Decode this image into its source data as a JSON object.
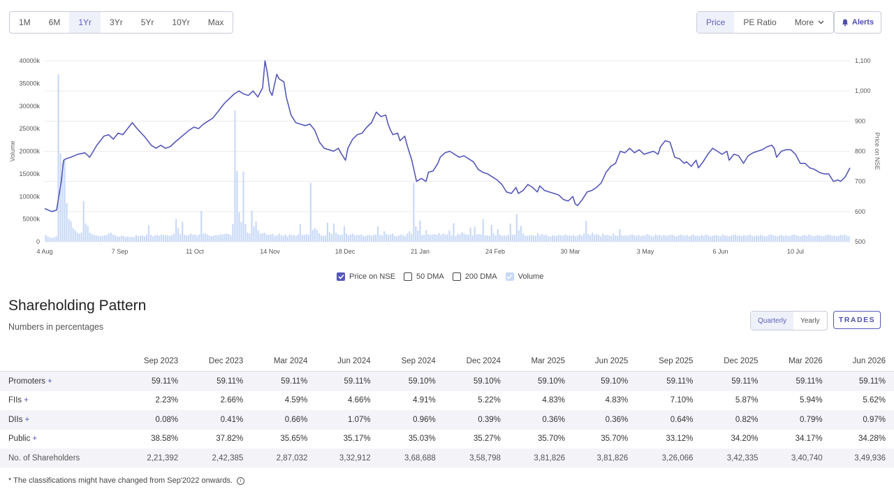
{
  "toolbar": {
    "ranges": [
      "1M",
      "6M",
      "1Yr",
      "3Yr",
      "5Yr",
      "10Yr",
      "Max"
    ],
    "active_range": "1Yr",
    "metric_price": "Price",
    "metric_pe": "PE Ratio",
    "metric_more": "More",
    "alerts_label": "Alerts"
  },
  "legend": {
    "price": "Price on NSE",
    "dma50": "50 DMA",
    "dma200": "200 DMA",
    "volume": "Volume"
  },
  "colors": {
    "accent": "#5457b8",
    "volume_bar": "#c8d9f7",
    "grid": "#eaeaea"
  },
  "chart_data": {
    "type": "line",
    "ylabel_left": "Volume",
    "ylabel_right": "Price on NSE",
    "x_ticks": [
      "4 Aug",
      "7 Sep",
      "11 Oct",
      "14 Nov",
      "18 Dec",
      "21 Jan",
      "24 Feb",
      "30 Mar",
      "3 May",
      "6 Jun",
      "10 Jul"
    ],
    "y_left_ticks": [
      "0",
      "5000k",
      "10000k",
      "15000k",
      "20000k",
      "25000k",
      "30000k",
      "35000k",
      "40000k"
    ],
    "y_right_ticks": [
      "500",
      "600",
      "700",
      "800",
      "900",
      "1,000",
      "1,100"
    ],
    "volume_range": [
      0,
      40000
    ],
    "price_range": [
      500,
      1100
    ],
    "price_series": {
      "name": "Price on NSE",
      "points": [
        [
          0,
          610
        ],
        [
          3,
          600
        ],
        [
          5,
          605
        ],
        [
          7,
          700
        ],
        [
          8,
          770
        ],
        [
          9,
          775
        ],
        [
          11,
          780
        ],
        [
          14,
          790
        ],
        [
          17,
          795
        ],
        [
          19,
          780
        ],
        [
          22,
          820
        ],
        [
          25,
          850
        ],
        [
          27,
          855
        ],
        [
          29,
          840
        ],
        [
          31,
          860
        ],
        [
          33,
          855
        ],
        [
          35,
          875
        ],
        [
          37,
          895
        ],
        [
          39,
          875
        ],
        [
          42,
          850
        ],
        [
          45,
          820
        ],
        [
          47,
          810
        ],
        [
          49,
          820
        ],
        [
          51,
          810
        ],
        [
          53,
          815
        ],
        [
          55,
          830
        ],
        [
          58,
          850
        ],
        [
          61,
          870
        ],
        [
          63,
          880
        ],
        [
          65,
          875
        ],
        [
          67,
          890
        ],
        [
          69,
          900
        ],
        [
          71,
          910
        ],
        [
          73,
          930
        ],
        [
          75,
          950
        ],
        [
          76,
          960
        ],
        [
          78,
          975
        ],
        [
          80,
          990
        ],
        [
          82,
          1000
        ],
        [
          84,
          990
        ],
        [
          86,
          985
        ],
        [
          88,
          1000
        ],
        [
          90,
          980
        ],
        [
          92,
          1010
        ],
        [
          93,
          1100
        ],
        [
          94,
          1060
        ],
        [
          95,
          1000
        ],
        [
          96,
          985
        ],
        [
          97,
          1020
        ],
        [
          98,
          1055
        ],
        [
          99,
          1040
        ],
        [
          101,
          1030
        ],
        [
          102,
          980
        ],
        [
          104,
          920
        ],
        [
          106,
          895
        ],
        [
          108,
          890
        ],
        [
          110,
          885
        ],
        [
          112,
          890
        ],
        [
          114,
          870
        ],
        [
          116,
          830
        ],
        [
          118,
          810
        ],
        [
          120,
          805
        ],
        [
          122,
          800
        ],
        [
          124,
          810
        ],
        [
          125,
          795
        ],
        [
          127,
          770
        ],
        [
          128,
          810
        ],
        [
          130,
          840
        ],
        [
          132,
          855
        ],
        [
          134,
          860
        ],
        [
          136,
          880
        ],
        [
          138,
          895
        ],
        [
          140,
          930
        ],
        [
          142,
          915
        ],
        [
          144,
          920
        ],
        [
          145,
          890
        ],
        [
          146,
          870
        ],
        [
          147,
          855
        ],
        [
          149,
          860
        ],
        [
          150,
          835
        ],
        [
          152,
          850
        ],
        [
          153,
          820
        ],
        [
          155,
          770
        ],
        [
          157,
          700
        ],
        [
          159,
          710
        ],
        [
          161,
          700
        ],
        [
          162,
          730
        ],
        [
          164,
          735
        ],
        [
          166,
          760
        ],
        [
          167,
          780
        ],
        [
          169,
          795
        ],
        [
          171,
          800
        ],
        [
          173,
          790
        ],
        [
          175,
          780
        ],
        [
          177,
          785
        ],
        [
          179,
          775
        ],
        [
          181,
          765
        ],
        [
          183,
          740
        ],
        [
          185,
          730
        ],
        [
          187,
          725
        ],
        [
          189,
          715
        ],
        [
          191,
          705
        ],
        [
          193,
          690
        ],
        [
          195,
          665
        ],
        [
          197,
          660
        ],
        [
          199,
          680
        ],
        [
          200,
          660
        ],
        [
          202,
          670
        ],
        [
          204,
          690
        ],
        [
          206,
          680
        ],
        [
          208,
          665
        ],
        [
          209,
          685
        ],
        [
          211,
          670
        ],
        [
          213,
          665
        ],
        [
          215,
          660
        ],
        [
          217,
          655
        ],
        [
          219,
          640
        ],
        [
          221,
          635
        ],
        [
          223,
          650
        ],
        [
          224,
          625
        ],
        [
          225,
          620
        ],
        [
          227,
          640
        ],
        [
          229,
          665
        ],
        [
          231,
          670
        ],
        [
          233,
          680
        ],
        [
          235,
          695
        ],
        [
          237,
          730
        ],
        [
          239,
          750
        ],
        [
          241,
          760
        ],
        [
          243,
          800
        ],
        [
          245,
          795
        ],
        [
          247,
          810
        ],
        [
          249,
          795
        ],
        [
          251,
          805
        ],
        [
          253,
          790
        ],
        [
          255,
          795
        ],
        [
          257,
          800
        ],
        [
          259,
          790
        ],
        [
          260,
          815
        ],
        [
          262,
          835
        ],
        [
          264,
          830
        ],
        [
          266,
          780
        ],
        [
          268,
          775
        ],
        [
          270,
          760
        ],
        [
          271,
          765
        ],
        [
          273,
          750
        ],
        [
          275,
          770
        ],
        [
          276,
          745
        ],
        [
          278,
          765
        ],
        [
          280,
          790
        ],
        [
          282,
          810
        ],
        [
          284,
          800
        ],
        [
          286,
          790
        ],
        [
          288,
          800
        ],
        [
          289,
          770
        ],
        [
          291,
          790
        ],
        [
          293,
          785
        ],
        [
          295,
          760
        ],
        [
          297,
          785
        ],
        [
          299,
          795
        ],
        [
          301,
          800
        ],
        [
          303,
          805
        ],
        [
          305,
          815
        ],
        [
          307,
          820
        ],
        [
          308,
          810
        ],
        [
          309,
          780
        ],
        [
          311,
          800
        ],
        [
          313,
          805
        ],
        [
          315,
          805
        ],
        [
          317,
          790
        ],
        [
          319,
          760
        ],
        [
          321,
          760
        ],
        [
          323,
          745
        ],
        [
          325,
          740
        ],
        [
          327,
          730
        ],
        [
          329,
          725
        ],
        [
          331,
          725
        ],
        [
          333,
          700
        ],
        [
          335,
          705
        ],
        [
          336,
          700
        ],
        [
          338,
          715
        ],
        [
          340,
          745
        ]
      ]
    },
    "volume_series": {
      "name": "Volume",
      "values": [
        1500,
        1200,
        900,
        800,
        1000,
        1200,
        37000,
        19500,
        17500,
        18000,
        8500,
        5000,
        4500,
        3000,
        2500,
        2000,
        1800,
        2000,
        9000,
        4000,
        3500,
        2000,
        1700,
        1500,
        1400,
        1300,
        1300,
        1300,
        1400,
        1500,
        1800,
        2000,
        1600,
        1400,
        1200,
        1100,
        1300,
        1300,
        1000,
        1200,
        1000,
        1100,
        1000,
        1500,
        1200,
        1300,
        1400,
        1200,
        1600,
        3600,
        1500,
        1200,
        1400,
        1500,
        1300,
        1600,
        1500,
        1500,
        1400,
        1300,
        1500,
        1800,
        5000,
        3000,
        1700,
        4400,
        1500,
        1400,
        1500,
        1800,
        1500,
        1600,
        1300,
        1600,
        6800,
        1800,
        1800,
        1600,
        1300,
        1200,
        1400,
        1500,
        1400,
        1600,
        1600,
        1700,
        1800,
        1700,
        1400,
        3900,
        29000,
        15600,
        6500,
        4300,
        15500,
        3900,
        2000,
        1800,
        6900,
        3400,
        4500,
        2500,
        1800,
        1800,
        2000,
        1600,
        1500,
        1600,
        1700,
        1300,
        1400,
        1800,
        1400,
        1300,
        1600,
        1200,
        1600,
        1400,
        1500,
        1300,
        1600,
        3900,
        1500,
        1500,
        1700,
        1500,
        13000,
        2600,
        3000,
        2600,
        1900,
        1400,
        1300,
        1400,
        4200,
        2100,
        1700,
        4000,
        2000,
        1700,
        1500,
        1600,
        3400,
        1800,
        1400,
        1600,
        1800,
        1400,
        1500,
        1500,
        1600,
        1300,
        1200,
        1400,
        1500,
        1300,
        1500,
        1600,
        3400,
        1500,
        1400,
        2300,
        1700,
        1500,
        1600,
        1800,
        1300,
        1200,
        1400,
        1600,
        1400,
        1200,
        1800,
        2300,
        1700,
        13000,
        3400,
        2500,
        4700,
        1500,
        1500,
        2600,
        1600,
        1500,
        1600,
        1600,
        1500,
        1900,
        1500,
        1800,
        1600,
        1600,
        2500,
        1400,
        4100,
        1300,
        1700,
        1600,
        2100,
        1800,
        1600,
        1600,
        3100,
        1400,
        3300,
        1600,
        1700,
        1600,
        5000,
        1400,
        1400,
        1300,
        3700,
        1900,
        1400,
        2800,
        1600,
        1300,
        1400,
        1300,
        1500,
        4000,
        1500,
        1600,
        6100,
        2500,
        3500,
        1800,
        1400,
        1300,
        1400,
        1500,
        1400,
        1300,
        1900,
        1400,
        1700,
        1400,
        1600,
        1200,
        1200,
        1400,
        1300,
        1300,
        1500,
        1400,
        1300,
        1600,
        1400,
        1400,
        1300,
        1500,
        1200,
        1400,
        1600,
        1300,
        1800,
        4600,
        1700,
        1400,
        2000,
        1500,
        1700,
        1500,
        1200,
        1800,
        1400,
        1500,
        1400,
        1300,
        1800,
        1400,
        1300,
        2800,
        1400,
        1300,
        1400,
        1300,
        1500,
        1600,
        1400,
        1300,
        1500,
        1200,
        1400,
        1300,
        1700,
        1500,
        1300,
        1200,
        1600,
        1400,
        1500,
        1300,
        1500,
        1300,
        1400,
        1500,
        1600,
        1300,
        1200,
        1400,
        1600,
        1400,
        1300,
        1500,
        1200,
        1400,
        1600,
        1300,
        1400,
        1200,
        1500,
        1300,
        1600,
        1400,
        1200,
        1300,
        1400,
        1500,
        1300,
        1200,
        1600,
        1400,
        1300,
        1200,
        1400,
        1500,
        1600,
        1300,
        1400,
        1200,
        1500,
        1300,
        1400,
        1600,
        1300,
        1200,
        1400,
        1300,
        1500,
        1400,
        1200,
        1300,
        1500,
        1600,
        1400,
        1300,
        1200,
        1400,
        1500,
        1300,
        1400,
        1200,
        1300,
        1500,
        1600,
        1400,
        1300,
        1200,
        1400,
        1500,
        1300,
        1600,
        1400,
        1200,
        1300,
        1500,
        1400,
        1300,
        1200,
        1400,
        1600,
        1500,
        1300,
        1400,
        1200,
        1300,
        1500,
        1400,
        1600,
        1300,
        1200
      ]
    }
  },
  "shareholding": {
    "title": "Shareholding Pattern",
    "subtitle": "Numbers in percentages",
    "freq_quarterly": "Quarterly",
    "freq_yearly": "Yearly",
    "trades_label": "TRADES",
    "periods": [
      "Sep 2023",
      "Dec 2023",
      "Mar 2024",
      "Jun 2024",
      "Sep 2024",
      "Dec 2024",
      "Mar 2025",
      "Jun 2025",
      "Sep 2025",
      "Dec 2025",
      "Mar 2026",
      "Jun 2026"
    ],
    "rows": [
      {
        "label": "Promoters",
        "expandable": true,
        "values": [
          "59.11%",
          "59.11%",
          "59.11%",
          "59.11%",
          "59.10%",
          "59.10%",
          "59.10%",
          "59.10%",
          "59.11%",
          "59.11%",
          "59.11%",
          "59.11%"
        ]
      },
      {
        "label": "FIIs",
        "expandable": true,
        "values": [
          "2.23%",
          "2.66%",
          "4.59%",
          "4.66%",
          "4.91%",
          "5.22%",
          "4.83%",
          "4.83%",
          "7.10%",
          "5.87%",
          "5.94%",
          "5.62%"
        ]
      },
      {
        "label": "DIIs",
        "expandable": true,
        "values": [
          "0.08%",
          "0.41%",
          "0.66%",
          "1.07%",
          "0.96%",
          "0.39%",
          "0.36%",
          "0.36%",
          "0.64%",
          "0.82%",
          "0.79%",
          "0.97%"
        ]
      },
      {
        "label": "Public",
        "expandable": true,
        "values": [
          "38.58%",
          "37.82%",
          "35.65%",
          "35.17%",
          "35.03%",
          "35.27%",
          "35.70%",
          "35.70%",
          "33.12%",
          "34.20%",
          "34.17%",
          "34.28%"
        ]
      },
      {
        "label": "No. of Shareholders",
        "expandable": false,
        "values": [
          "2,21,392",
          "2,42,385",
          "2,87,032",
          "3,32,912",
          "3,68,688",
          "3,58,798",
          "3,81,826",
          "3,81,826",
          "3,26,066",
          "3,42,335",
          "3,40,740",
          "3,49,936"
        ]
      }
    ],
    "footnote": "* The classifications might have changed from Sep'2022 onwards."
  }
}
